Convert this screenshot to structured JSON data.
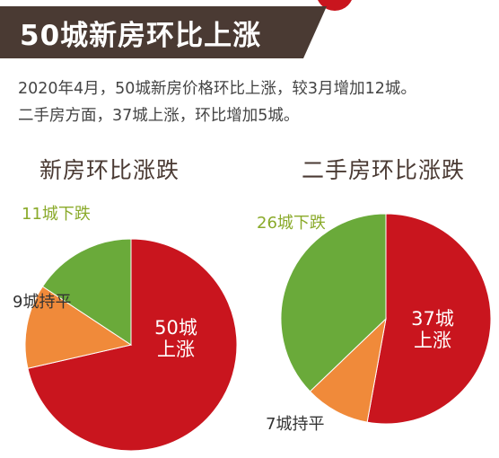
{
  "header": {
    "title": "50城新房环比上涨"
  },
  "summary": [
    "2020年4月，50城新房价格环比上涨，较3月增加12城。",
    "二手房方面，37城上涨，环比增加5城。"
  ],
  "colors": {
    "rise": "#c9151e",
    "flat": "#f08a3a",
    "fall": "#6aaa3a",
    "header_bg": "#4a3a33"
  },
  "chart_data": [
    {
      "type": "pie",
      "title": "新房环比涨跌",
      "slices": [
        {
          "label": "50城 上涨",
          "label_lines": [
            "50城",
            "上涨"
          ],
          "value": 50,
          "color": "#c9151e"
        },
        {
          "label": "9城持平",
          "label_lines": [
            "9城持平"
          ],
          "value": 9,
          "color": "#f08a3a"
        },
        {
          "label": "11城下跌",
          "label_lines": [
            "11城下跌"
          ],
          "value": 11,
          "color": "#6aaa3a"
        }
      ]
    },
    {
      "type": "pie",
      "title": "二手房环比涨跌",
      "slices": [
        {
          "label": "37城 上涨",
          "label_lines": [
            "37城",
            "上涨"
          ],
          "value": 37,
          "color": "#c9151e"
        },
        {
          "label": "7城持平",
          "label_lines": [
            "7城持平"
          ],
          "value": 7,
          "color": "#f08a3a"
        },
        {
          "label": "26城下跌",
          "label_lines": [
            "26城下跌"
          ],
          "value": 26,
          "color": "#6aaa3a"
        }
      ]
    }
  ]
}
